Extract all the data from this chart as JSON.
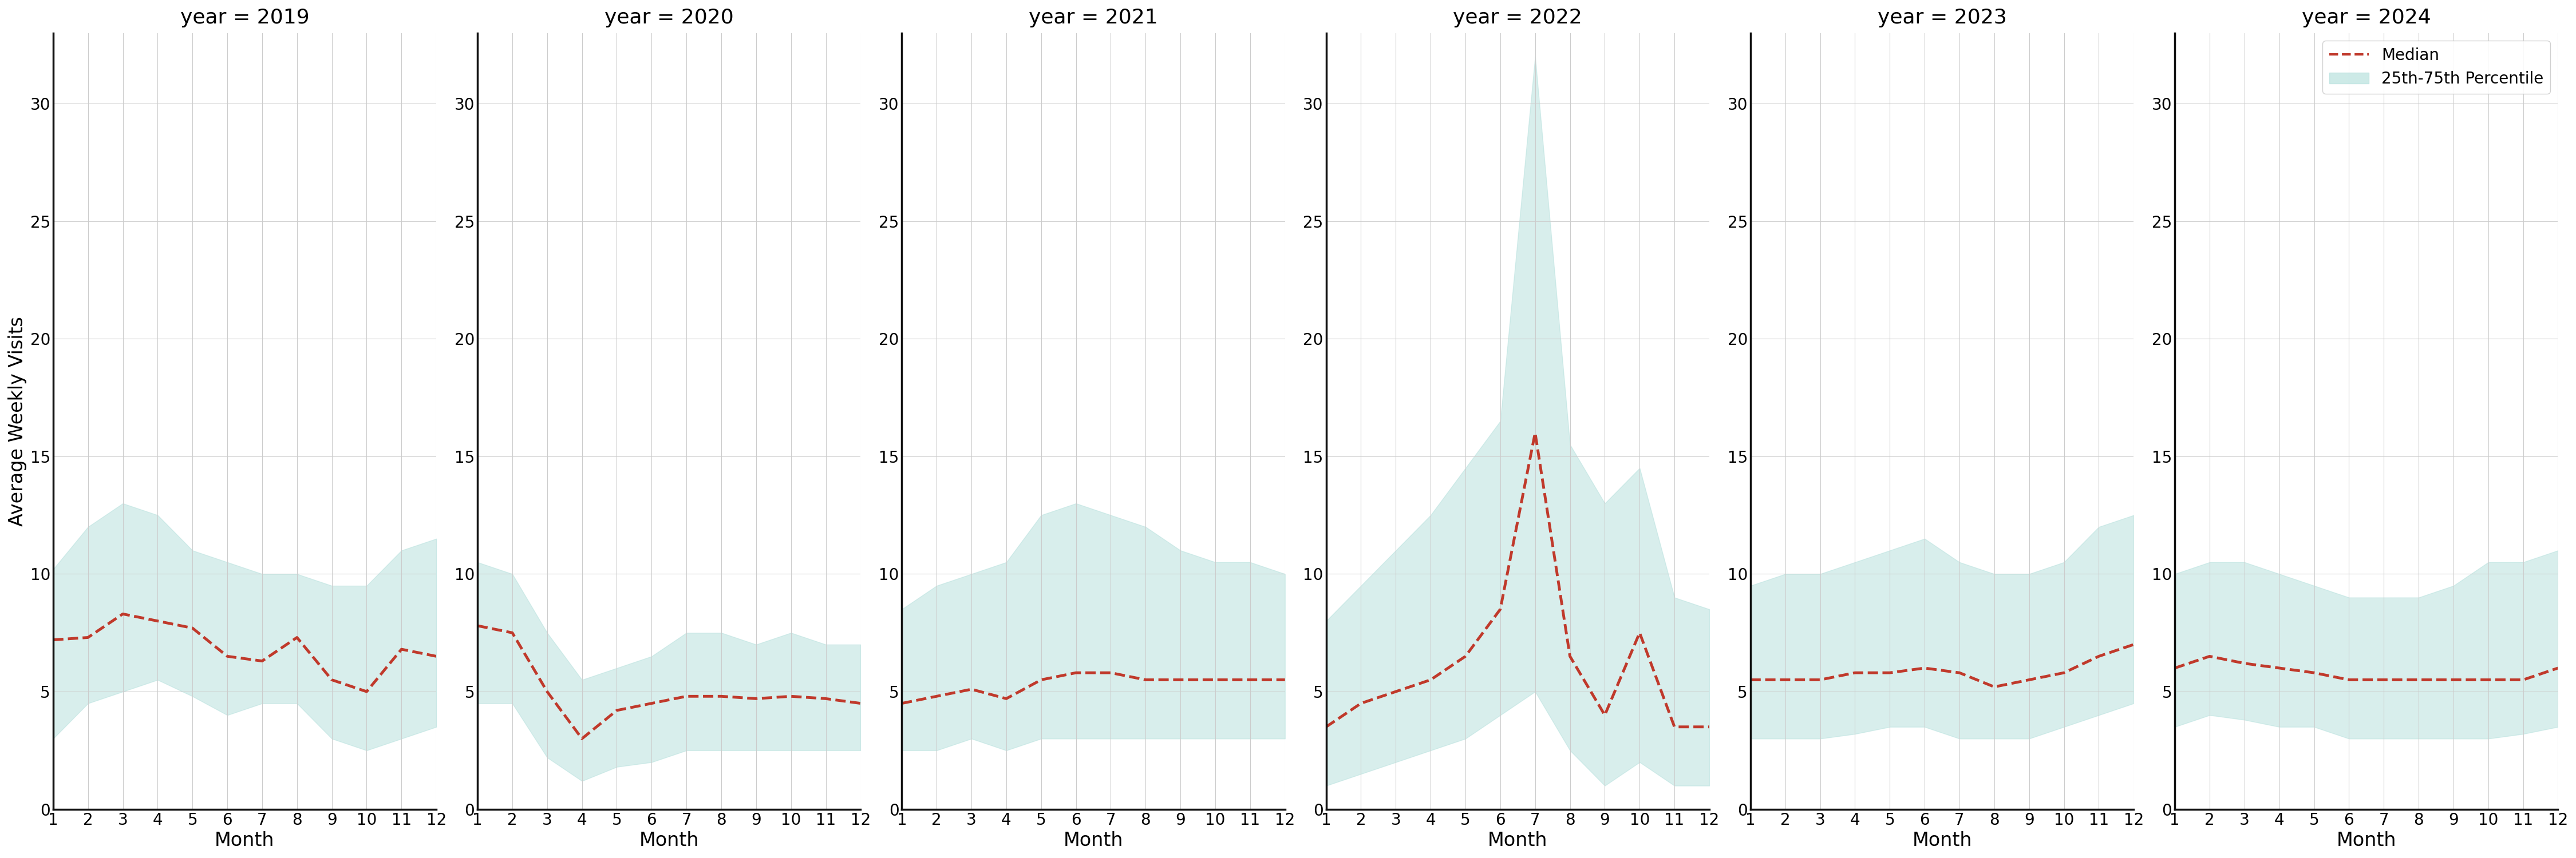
{
  "years": [
    2019,
    2020,
    2021,
    2022,
    2023,
    2024
  ],
  "months": [
    1,
    2,
    3,
    4,
    5,
    6,
    7,
    8,
    9,
    10,
    11,
    12
  ],
  "ylabel": "Average Weekly Visits",
  "xlabel": "Month",
  "fill_color": "#b2dfdb",
  "fill_alpha": 0.5,
  "line_color": "#c0392b",
  "line_style": "--",
  "line_width": 3.5,
  "legend_median_label": "Median",
  "legend_fill_label": "25th-75th Percentile",
  "median": {
    "2019": [
      7.2,
      7.3,
      8.3,
      8.0,
      7.7,
      6.5,
      6.3,
      7.3,
      5.5,
      5.0,
      6.8,
      6.5
    ],
    "2020": [
      7.8,
      7.5,
      5.0,
      3.0,
      4.2,
      4.5,
      4.8,
      4.8,
      4.7,
      4.8,
      4.7,
      4.5
    ],
    "2021": [
      4.5,
      4.8,
      5.1,
      4.7,
      5.5,
      5.8,
      5.8,
      5.5,
      5.5,
      5.5,
      5.5,
      5.5
    ],
    "2022": [
      3.5,
      4.5,
      5.0,
      5.5,
      6.5,
      8.5,
      16.0,
      6.5,
      4.0,
      7.5,
      3.5,
      3.5
    ],
    "2023": [
      5.5,
      5.5,
      5.5,
      5.8,
      5.8,
      6.0,
      5.8,
      5.2,
      5.5,
      5.8,
      6.5,
      7.0
    ],
    "2024": [
      6.0,
      6.5,
      6.2,
      6.0,
      5.8,
      5.5,
      5.5,
      5.5,
      5.5,
      5.5,
      5.5,
      6.0
    ]
  },
  "q25": {
    "2019": [
      3.0,
      4.5,
      5.0,
      5.5,
      4.8,
      4.0,
      4.5,
      4.5,
      3.0,
      2.5,
      3.0,
      3.5
    ],
    "2020": [
      4.5,
      4.5,
      2.2,
      1.2,
      1.8,
      2.0,
      2.5,
      2.5,
      2.5,
      2.5,
      2.5,
      2.5
    ],
    "2021": [
      2.5,
      2.5,
      3.0,
      2.5,
      3.0,
      3.0,
      3.0,
      3.0,
      3.0,
      3.0,
      3.0,
      3.0
    ],
    "2022": [
      1.0,
      1.5,
      2.0,
      2.5,
      3.0,
      4.0,
      5.0,
      2.5,
      1.0,
      2.0,
      1.0,
      1.0
    ],
    "2023": [
      3.0,
      3.0,
      3.0,
      3.2,
      3.5,
      3.5,
      3.0,
      3.0,
      3.0,
      3.5,
      4.0,
      4.5
    ],
    "2024": [
      3.5,
      4.0,
      3.8,
      3.5,
      3.5,
      3.0,
      3.0,
      3.0,
      3.0,
      3.0,
      3.2,
      3.5
    ]
  },
  "q75": {
    "2019": [
      10.2,
      12.0,
      13.0,
      12.5,
      11.0,
      10.5,
      10.0,
      10.0,
      9.5,
      9.5,
      11.0,
      11.5
    ],
    "2020": [
      10.5,
      10.0,
      7.5,
      5.5,
      6.0,
      6.5,
      7.5,
      7.5,
      7.0,
      7.5,
      7.0,
      7.0
    ],
    "2021": [
      8.5,
      9.5,
      10.0,
      10.5,
      12.5,
      13.0,
      12.5,
      12.0,
      11.0,
      10.5,
      10.5,
      10.0
    ],
    "2022": [
      8.0,
      9.5,
      11.0,
      12.5,
      14.5,
      16.5,
      32.0,
      15.5,
      13.0,
      14.5,
      9.0,
      8.5
    ],
    "2023": [
      9.5,
      10.0,
      10.0,
      10.5,
      11.0,
      11.5,
      10.5,
      10.0,
      10.0,
      10.5,
      12.0,
      12.5
    ],
    "2024": [
      10.0,
      10.5,
      10.5,
      10.0,
      9.5,
      9.0,
      9.0,
      9.0,
      9.5,
      10.5,
      10.5,
      11.0
    ]
  },
  "ylim": [
    0,
    33
  ],
  "yticks": [
    0,
    5,
    10,
    15,
    20,
    25,
    30
  ],
  "fig_width": 45,
  "fig_height": 15,
  "bg_color": "#ffffff",
  "spine_color": "#111111",
  "grid_color": "#cccccc",
  "title_fontsize": 26,
  "label_fontsize": 24,
  "tick_fontsize": 20,
  "legend_fontsize": 20
}
